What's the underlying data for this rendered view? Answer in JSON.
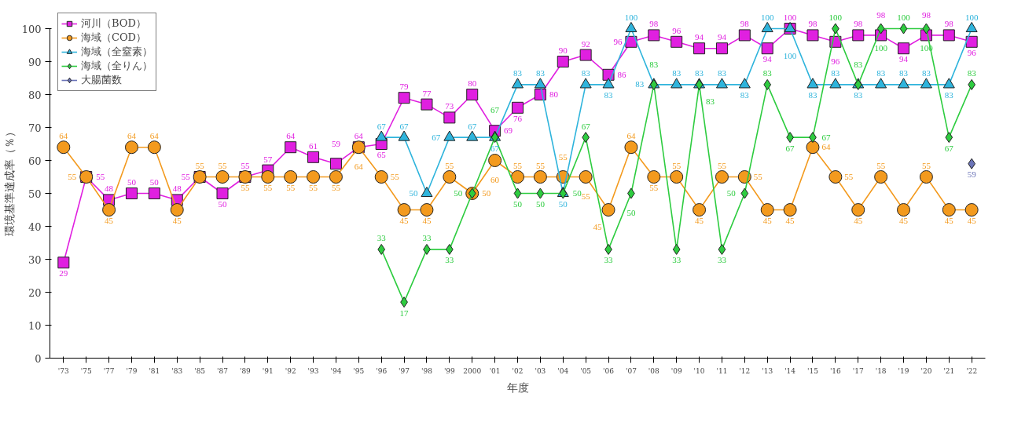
{
  "chart_data": {
    "type": "line",
    "xlabel": "年度",
    "ylabel": "環境基準達成率（％）",
    "categories": [
      "'73",
      "'75",
      "'77",
      "'79",
      "'81",
      "'83",
      "'85",
      "'87",
      "'89",
      "'91",
      "'92",
      "'93",
      "'94",
      "'95",
      "'96",
      "'97",
      "'98",
      "'99",
      "2000",
      "'01",
      "'02",
      "'03",
      "'04",
      "'05",
      "'06",
      "'07",
      "'08",
      "'09",
      "'10",
      "'11",
      "'12",
      "'13",
      "'14",
      "'15",
      "'16",
      "'17",
      "'18",
      "'19",
      "'20",
      "'21",
      "'22"
    ],
    "series": [
      {
        "name": "河川（BOD）",
        "color": "#e020e0",
        "marker": "square",
        "values": [
          29,
          55,
          48,
          50,
          50,
          48,
          55,
          50,
          55,
          57,
          64,
          61,
          59,
          64,
          65,
          79,
          77,
          73,
          80,
          69,
          76,
          80,
          90,
          92,
          86,
          96,
          98,
          96,
          94,
          94,
          98,
          94,
          100,
          98,
          96,
          98,
          98,
          94,
          98,
          98,
          96
        ]
      },
      {
        "name": "海域（COD）",
        "color": "#f39a1e",
        "marker": "circle",
        "values": [
          64,
          55,
          45,
          64,
          64,
          45,
          55,
          55,
          55,
          55,
          55,
          55,
          55,
          64,
          55,
          45,
          45,
          55,
          50,
          60,
          55,
          55,
          55,
          55,
          45,
          64,
          55,
          55,
          45,
          55,
          55,
          45,
          45,
          64,
          55,
          45,
          55,
          45,
          55,
          45,
          45
        ]
      },
      {
        "name": "海域（全窒素）",
        "color": "#2fb4dc",
        "marker": "triangle",
        "values": [
          null,
          null,
          null,
          null,
          null,
          null,
          null,
          null,
          null,
          null,
          null,
          null,
          null,
          null,
          67,
          67,
          50,
          67,
          67,
          67,
          83,
          83,
          50,
          83,
          83,
          100,
          83,
          83,
          83,
          83,
          83,
          100,
          100,
          83,
          83,
          83,
          83,
          83,
          83,
          83,
          100
        ]
      },
      {
        "name": "海域（全りん）",
        "color": "#2ecc40",
        "marker": "diamond",
        "values": [
          null,
          null,
          null,
          null,
          null,
          null,
          null,
          null,
          null,
          null,
          null,
          null,
          null,
          null,
          33,
          17,
          33,
          33,
          50,
          67,
          50,
          50,
          50,
          67,
          33,
          50,
          83,
          33,
          83,
          33,
          50,
          83,
          67,
          67,
          100,
          83,
          100,
          100,
          100,
          67,
          83
        ]
      },
      {
        "name": "大腸菌数",
        "color": "#6b74b8",
        "marker": "diamond",
        "values": [
          null,
          null,
          null,
          null,
          null,
          null,
          null,
          null,
          null,
          null,
          null,
          null,
          null,
          null,
          null,
          null,
          null,
          null,
          null,
          null,
          null,
          null,
          null,
          null,
          null,
          null,
          null,
          null,
          null,
          null,
          null,
          null,
          null,
          null,
          null,
          null,
          null,
          null,
          null,
          null,
          59
        ]
      }
    ],
    "ylim": [
      0,
      100
    ],
    "yticks": [
      0,
      10,
      20,
      30,
      40,
      50,
      60,
      70,
      80,
      90,
      100
    ],
    "data_labels": true,
    "legend": "top left",
    "grid": false,
    "line_style": "solid"
  }
}
